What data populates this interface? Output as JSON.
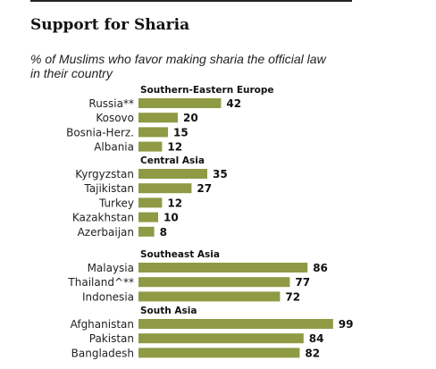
{
  "title": "Support for Sharia",
  "subtitle": "% of Muslims who favor making sharia the official law in their country",
  "colors": {
    "bar": "#8f9a45",
    "text": "#1a1a1a"
  },
  "chart_data": {
    "type": "bar",
    "orientation": "horizontal",
    "title": "Support for Sharia",
    "subtitle": "% of Muslims who favor making sharia the official law in their country",
    "xlim": [
      0,
      100
    ],
    "grid": false,
    "legend": "none",
    "groups": [
      {
        "name": "Southern-Eastern  Europe",
        "categories": [
          "Russia**",
          "Kosovo",
          "Bosnia-Herz.",
          "Albania"
        ],
        "values": [
          42,
          20,
          15,
          12
        ]
      },
      {
        "name": "Central Asia",
        "categories": [
          "Kyrgyzstan",
          "Tajikistan",
          "Turkey",
          "Kazakhstan",
          "Azerbaijan"
        ],
        "values": [
          35,
          27,
          12,
          10,
          8
        ]
      },
      {
        "name": "Southeast Asia",
        "categories": [
          "Malaysia",
          "Thailand^**",
          "Indonesia"
        ],
        "values": [
          86,
          77,
          72
        ]
      },
      {
        "name": "South Asia",
        "categories": [
          "Afghanistan",
          "Pakistan",
          "Bangladesh"
        ],
        "values": [
          99,
          84,
          82
        ]
      }
    ]
  }
}
